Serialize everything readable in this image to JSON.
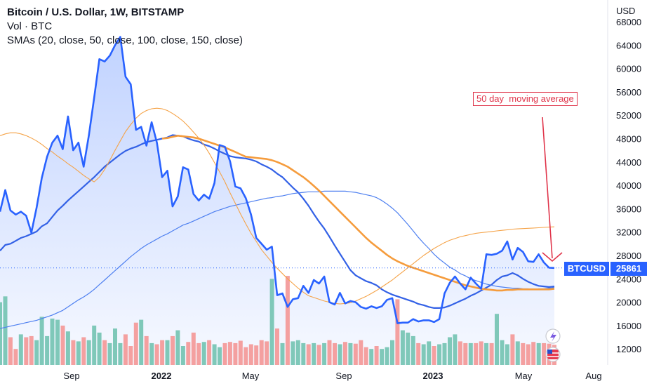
{
  "legend": {
    "title": "Bitcoin / U.S. Dollar, 1W, BITSTAMP",
    "volume_label": "Vol · BTC",
    "sma_label": "SMAs (20, close, 50, close, 100, close, 150, close)"
  },
  "price_tag": {
    "symbol": "BTCUSD",
    "price": "25861"
  },
  "annotation": {
    "text": "50 day  moving average"
  },
  "chart_data": {
    "type": "line",
    "currency": "USD",
    "ylim": [
      9000,
      70000
    ],
    "y_ticks": [
      12000,
      16000,
      20000,
      24000,
      28000,
      32000,
      36000,
      40000,
      44000,
      48000,
      52000,
      56000,
      60000,
      64000,
      68000
    ],
    "x_ticks": [
      "Sep",
      "2022",
      "May",
      "Sep",
      "2023",
      "May",
      "Aug"
    ],
    "last_price": 25861,
    "price_series": {
      "name": "BTCUSD",
      "values": [
        35500,
        39200,
        35700,
        35000,
        35500,
        34800,
        31900,
        36200,
        41300,
        44900,
        47300,
        48500,
        46200,
        51800,
        46000,
        47300,
        43200,
        48600,
        55000,
        61600,
        61200,
        62200,
        64000,
        65400,
        58600,
        57300,
        49500,
        50000,
        46800,
        50800,
        47300,
        41400,
        42500,
        36400,
        38100,
        43100,
        42700,
        38500,
        37400,
        38400,
        37700,
        40400,
        46900,
        46600,
        44100,
        39800,
        39500,
        37800,
        35000,
        31000,
        30000,
        29000,
        29500,
        21200,
        21500,
        19200,
        20500,
        20700,
        22800,
        21600,
        23800,
        23200,
        24400,
        20000,
        19600,
        21600,
        19800,
        20200,
        20000,
        19200,
        18900,
        19300,
        19000,
        19300,
        20400,
        20700,
        16400,
        16500,
        16500,
        17100,
        16700,
        16900,
        16900,
        16600,
        17100,
        21500,
        23300,
        24400,
        23200,
        22200,
        24200,
        23200,
        22300,
        28200,
        28100,
        28300,
        28800,
        30400,
        27300,
        29300,
        28600,
        27000,
        26900,
        28200,
        26800,
        25900,
        25861
      ]
    },
    "volume": {
      "name": "Vol · BTC",
      "values": [
        20000,
        21000,
        14000,
        12000,
        14500,
        14000,
        14200,
        13500,
        17500,
        14200,
        17200,
        17000,
        16000,
        15000,
        13500,
        13300,
        14000,
        13500,
        16000,
        14800,
        13500,
        13000,
        15500,
        13000,
        14500,
        12500,
        16500,
        17000,
        14200,
        13000,
        12800,
        13500,
        13500,
        14200,
        15200,
        12500,
        13200,
        14800,
        13000,
        13200,
        13500,
        12800,
        12300,
        13000,
        13200,
        13000,
        13400,
        12300,
        12800,
        12600,
        13500,
        13300,
        24000,
        15500,
        13000,
        24500,
        13300,
        13500,
        13000,
        12800,
        13000,
        12700,
        13000,
        13500,
        13000,
        12800,
        13200,
        13000,
        12900,
        13500,
        12300,
        12000,
        12500,
        12000,
        12300,
        13500,
        20500,
        15200,
        14800,
        14200,
        13000,
        12800,
        13300,
        12500,
        12800,
        13000,
        14000,
        14500,
        13300,
        13000,
        13000,
        13000,
        13300,
        13000,
        13000,
        18000,
        13500,
        12800,
        14500,
        13300,
        13000,
        12800,
        13200,
        13000,
        13000,
        12900,
        12700
      ],
      "colors": {
        "up": "#7fc8b9",
        "down": "#f4a0a0"
      }
    },
    "sma_series": [
      {
        "period": 20,
        "color": "#3361e6",
        "values": [
          28800,
          29800,
          30000,
          30500,
          31000,
          31300,
          31700,
          32100,
          33000,
          33500,
          34600,
          35700,
          36500,
          37400,
          38200,
          39000,
          39800,
          40600,
          41400,
          42300,
          43200,
          43900,
          44600,
          45300,
          45900,
          46300,
          46600,
          47000,
          47400,
          47600,
          47800,
          48000,
          48200,
          48600,
          48500,
          48400,
          48000,
          47700,
          47500,
          47000,
          46700,
          46300,
          45800,
          45400,
          45000,
          44800,
          44700,
          44600,
          44400,
          44100,
          43600,
          43200,
          42700,
          42000,
          41400,
          40500,
          39600,
          38800,
          37700,
          36500,
          35100,
          33800,
          32600,
          31200,
          29700,
          28300,
          26900,
          25500,
          24600,
          24100,
          23600,
          23300,
          22900,
          22200,
          21700,
          21300,
          21000,
          20700,
          20400,
          20100,
          19700,
          19500,
          19200,
          19000,
          19000,
          19100,
          19400,
          19800,
          20200,
          20600,
          21100,
          21500,
          22000,
          22500,
          23000,
          23800,
          24400,
          24600,
          25000,
          24600,
          24000,
          23500,
          23100,
          22800,
          22700,
          22600,
          22700
        ]
      },
      {
        "period": 50,
        "color": "#4d7ff0",
        "values": [
          15500,
          15700,
          15900,
          16100,
          16300,
          16500,
          16700,
          16900,
          17200,
          17500,
          17800,
          18200,
          18600,
          19200,
          19800,
          20400,
          20900,
          21500,
          22200,
          23000,
          23800,
          24600,
          25400,
          26200,
          27000,
          27800,
          28500,
          29200,
          29800,
          30300,
          30800,
          31300,
          31700,
          32200,
          32700,
          33200,
          33500,
          33900,
          34300,
          34700,
          35100,
          35500,
          35800,
          36100,
          36400,
          36600,
          36800,
          37000,
          37200,
          37400,
          37600,
          37800,
          37900,
          38100,
          38200,
          38400,
          38600,
          38700,
          38800,
          38900,
          38900,
          38900,
          39000,
          39000,
          39000,
          39000,
          39000,
          38900,
          38800,
          38600,
          38400,
          38200,
          37900,
          37400,
          36800,
          36100,
          35300,
          34300,
          33300,
          32200,
          31100,
          30100,
          29200,
          28200,
          27400,
          26700,
          26000,
          25500,
          24900,
          24500,
          24000,
          23700,
          23400,
          23100,
          22900,
          22700,
          22600,
          22500,
          22400,
          22400,
          22300,
          22300,
          22200,
          22300,
          22300,
          22400,
          22500
        ]
      },
      {
        "period": 100,
        "color": "#f5a348",
        "values": [
          48500,
          48800,
          49000,
          49000,
          48800,
          48500,
          48100,
          47600,
          47000,
          46300,
          45700,
          45000,
          44400,
          43700,
          43100,
          42400,
          41700,
          41100,
          40600,
          41400,
          42700,
          44300,
          46000,
          47600,
          49200,
          50400,
          51500,
          52300,
          52800,
          53100,
          53200,
          53100,
          52800,
          52300,
          51700,
          51000,
          50100,
          49100,
          48100,
          46900,
          45500,
          43900,
          42300,
          40600,
          38700,
          36900,
          35100,
          33400,
          31800,
          30400,
          29000,
          27900,
          26800,
          25800,
          24900,
          24000,
          23200,
          22400,
          21700,
          21100,
          20800,
          20500,
          20200,
          20000,
          19800,
          19700,
          19800,
          19900,
          20200,
          20600,
          21000,
          21500,
          22000,
          22600,
          23200,
          23800,
          24500,
          25200,
          25900,
          26600,
          27300,
          28000,
          28600,
          29200,
          29700,
          30200,
          30600,
          30900,
          31200,
          31400,
          31600,
          31800,
          31900,
          32000,
          32100,
          32200,
          32300,
          32400,
          32500,
          32550,
          32600,
          32650,
          32700,
          32750,
          32800,
          32850,
          32900
        ]
      },
      {
        "period": 150,
        "color": "#f59c3d",
        "values": [
          null,
          null,
          null,
          null,
          null,
          null,
          null,
          null,
          null,
          null,
          null,
          null,
          null,
          null,
          null,
          null,
          null,
          null,
          null,
          null,
          null,
          null,
          null,
          null,
          null,
          null,
          null,
          null,
          null,
          null,
          null,
          48000,
          48100,
          48300,
          48500,
          48400,
          48300,
          48200,
          48000,
          47700,
          47400,
          47100,
          46800,
          46500,
          46100,
          45700,
          45300,
          44900,
          44800,
          44700,
          44600,
          44500,
          44300,
          44000,
          43600,
          43200,
          42600,
          42000,
          41400,
          40700,
          39900,
          39100,
          38200,
          37300,
          36400,
          35500,
          34600,
          33700,
          32800,
          31900,
          31000,
          30200,
          29500,
          28800,
          28100,
          27500,
          27000,
          26600,
          26200,
          25900,
          25600,
          25300,
          25000,
          24700,
          24400,
          24100,
          23800,
          23500,
          23200,
          22900,
          22700,
          22500,
          22300,
          22200,
          22100,
          22000,
          22000,
          22100,
          22100,
          22200,
          22200,
          22200,
          22200,
          22200,
          22200,
          22200,
          22300
        ]
      }
    ]
  }
}
